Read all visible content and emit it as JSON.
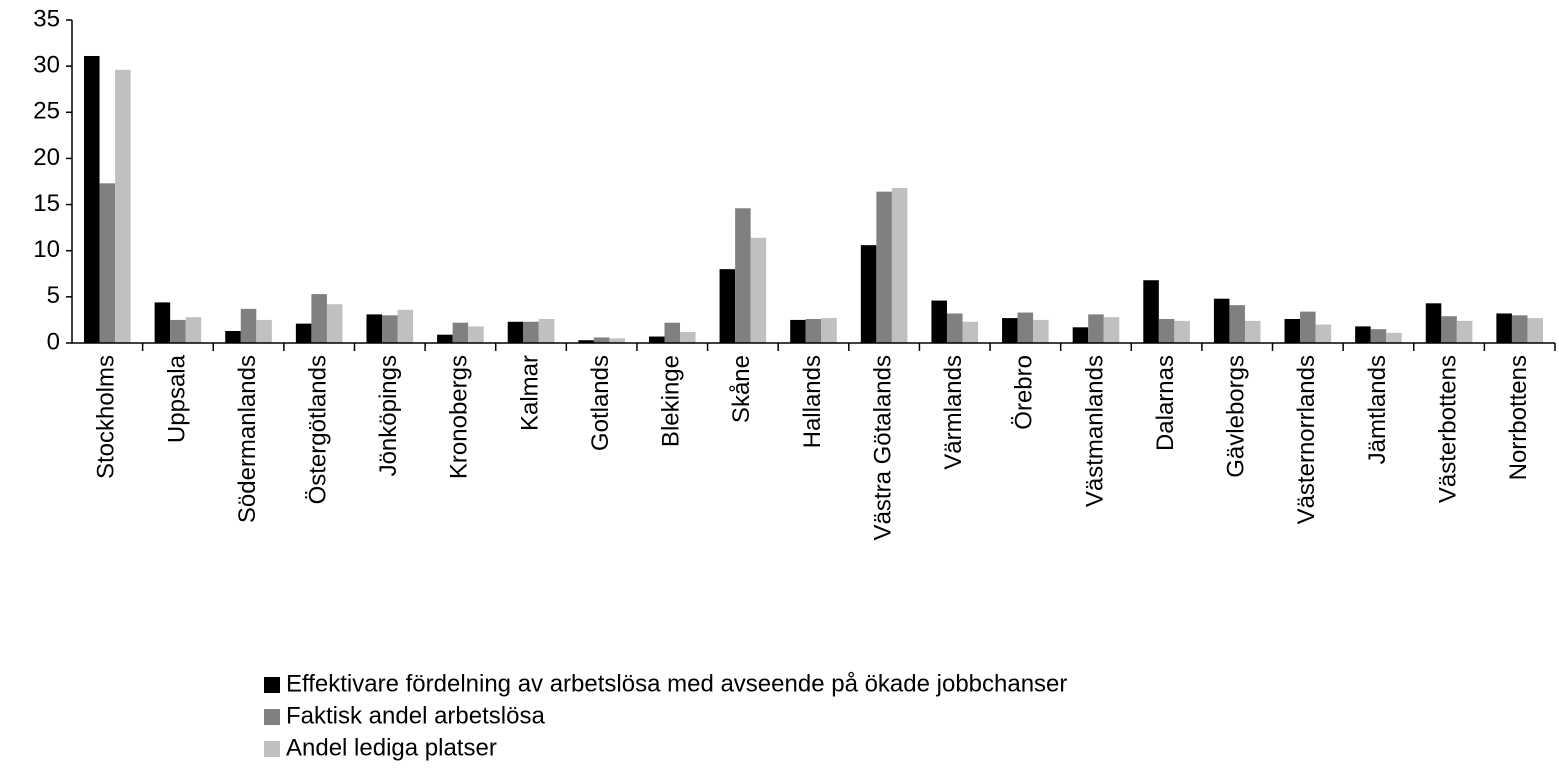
{
  "chart_data": {
    "type": "bar",
    "categories": [
      "Stockholms",
      "Uppsala",
      "Södermanlands",
      "Östergötlands",
      "Jönköpings",
      "Kronobergs",
      "Kalmar",
      "Gotlands",
      "Blekinge",
      "Skåne",
      "Hallands",
      "Västra Götalands",
      "Värmlands",
      "Örebro",
      "Västmanlands",
      "Dalarnas",
      "Gävleborgs",
      "Västernorrlands",
      "Jämtlands",
      "Västerbottens",
      "Norrbottens"
    ],
    "series": [
      {
        "name": "Effektivare fördelning av arbetslösa med avseende på ökade jobbchanser",
        "color": "#000000",
        "values": [
          31.1,
          4.4,
          1.3,
          2.1,
          3.1,
          0.9,
          2.3,
          0.3,
          0.7,
          8.0,
          2.5,
          10.6,
          4.6,
          2.7,
          1.7,
          6.8,
          4.8,
          2.6,
          1.8,
          4.3,
          3.2
        ]
      },
      {
        "name": "Faktisk andel arbetslösa",
        "color": "#808080",
        "values": [
          17.3,
          2.5,
          3.7,
          5.3,
          3.0,
          2.2,
          2.3,
          0.6,
          2.2,
          14.6,
          2.6,
          16.4,
          3.2,
          3.3,
          3.1,
          2.6,
          4.1,
          3.4,
          1.5,
          2.9,
          3.0
        ]
      },
      {
        "name": "Andel lediga platser",
        "color": "#c0c0c0",
        "values": [
          29.6,
          2.8,
          2.5,
          4.2,
          3.6,
          1.8,
          2.6,
          0.5,
          1.2,
          11.4,
          2.7,
          16.8,
          2.3,
          2.5,
          2.8,
          2.4,
          2.4,
          2.0,
          1.1,
          2.4,
          2.7
        ]
      }
    ],
    "ylim": [
      0,
      35
    ],
    "yticks": [
      0,
      5,
      10,
      15,
      20,
      25,
      30,
      35
    ],
    "grid": false,
    "legend": "bottom"
  }
}
